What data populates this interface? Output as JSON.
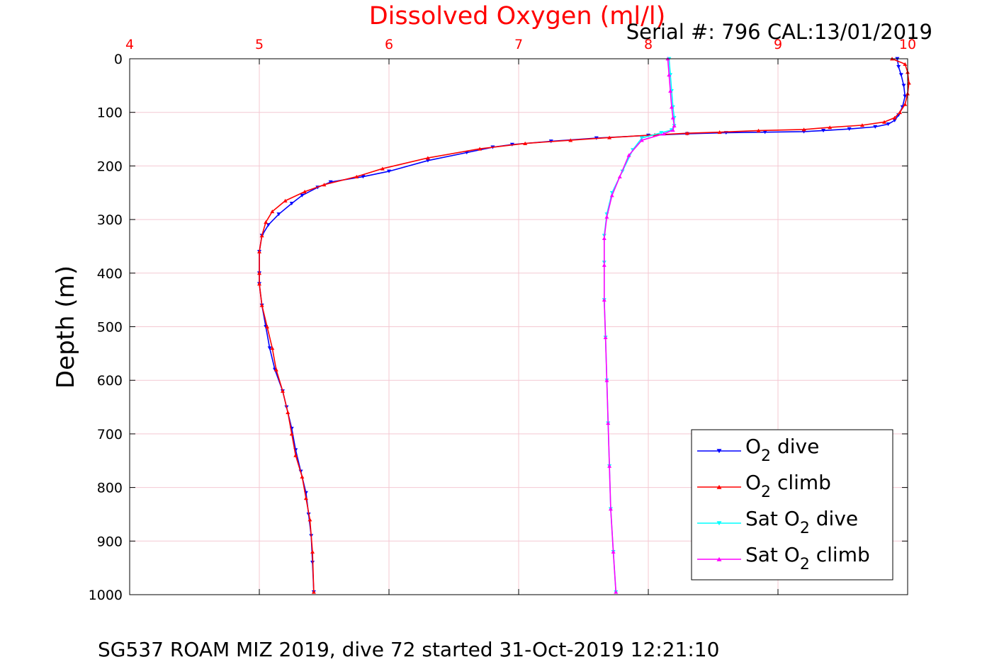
{
  "chart_data": {
    "type": "line",
    "title": "Dissolved Oxygen (ml/l)",
    "subtitle": "Serial #: 796  CAL:13/01/2019",
    "footer": "SG537 ROAM MIZ 2019, dive 72 started 31-Oct-2019 12:21:10",
    "xlabel": "",
    "ylabel": "Depth (m)",
    "xlim": [
      4,
      10
    ],
    "ylim": [
      0,
      1000
    ],
    "y_reversed": true,
    "x_axis_position": "top",
    "xticks": [
      "4",
      "5",
      "6",
      "7",
      "8",
      "9",
      "10"
    ],
    "yticks": [
      "0",
      "100",
      "200",
      "300",
      "400",
      "500",
      "600",
      "700",
      "800",
      "900",
      "1000"
    ],
    "grid": true,
    "legend_position": "bottom-right",
    "colors": {
      "title": "#ff0000",
      "xticks": "#ff0000",
      "grid": "#f4c8d2",
      "axis": "#000000"
    },
    "series": [
      {
        "name": "O2 dive",
        "legend": {
          "pre": "O",
          "sub": "2",
          "post": " dive"
        },
        "color": "#0000ff",
        "marker": "triangle-down",
        "x": [
          9.92,
          9.93,
          9.95,
          9.97,
          9.98,
          9.96,
          9.93,
          9.9,
          9.85,
          9.75,
          9.55,
          9.35,
          9.2,
          8.9,
          8.6,
          8.3,
          8.0,
          7.6,
          7.25,
          6.95,
          6.8,
          6.6,
          6.3,
          6.0,
          5.8,
          5.55,
          5.45,
          5.33,
          5.25,
          5.15,
          5.07,
          5.02,
          5.0,
          5.0,
          5.0,
          5.02,
          5.05,
          5.08,
          5.12,
          5.18,
          5.21,
          5.25,
          5.28,
          5.32,
          5.36,
          5.38,
          5.4,
          5.41,
          5.42
        ],
        "y": [
          0,
          15,
          30,
          50,
          70,
          90,
          105,
          115,
          122,
          127,
          131,
          134,
          136,
          137,
          138,
          140,
          143,
          148,
          154,
          160,
          165,
          175,
          190,
          210,
          220,
          230,
          240,
          255,
          270,
          290,
          310,
          330,
          360,
          400,
          420,
          460,
          500,
          540,
          580,
          620,
          650,
          690,
          730,
          770,
          810,
          850,
          890,
          940,
          995
        ]
      },
      {
        "name": "O2 climb",
        "legend": {
          "pre": "O",
          "sub": "2",
          "post": " climb"
        },
        "color": "#ff0000",
        "marker": "triangle-up",
        "x": [
          9.88,
          9.98,
          10.0,
          10.01,
          10.0,
          9.98,
          9.94,
          9.9,
          9.82,
          9.65,
          9.4,
          9.2,
          8.85,
          8.55,
          8.3,
          8.05,
          7.7,
          7.4,
          7.05,
          6.7,
          6.3,
          5.95,
          5.75,
          5.5,
          5.35,
          5.2,
          5.1,
          5.05,
          5.02,
          5.0,
          5.0,
          5.0,
          5.02,
          5.06,
          5.1,
          5.13,
          5.18,
          5.22,
          5.25,
          5.28,
          5.33,
          5.36,
          5.39,
          5.41,
          5.42
        ],
        "y": [
          0,
          10,
          25,
          45,
          65,
          85,
          100,
          110,
          118,
          124,
          128,
          132,
          134,
          137,
          139,
          142,
          147,
          152,
          158,
          168,
          185,
          205,
          220,
          235,
          248,
          265,
          285,
          305,
          330,
          360,
          400,
          420,
          460,
          500,
          540,
          580,
          620,
          660,
          700,
          740,
          780,
          820,
          860,
          920,
          995
        ]
      },
      {
        "name": "Sat O2 dive",
        "legend": {
          "pre": "Sat O",
          "sub": "2",
          "post": " dive"
        },
        "color": "#00ffff",
        "marker": "triangle-down",
        "x": [
          8.16,
          8.17,
          8.18,
          8.19,
          8.2,
          8.2,
          8.18,
          8.1,
          7.95,
          7.88,
          7.8,
          7.72,
          7.68,
          7.66,
          7.66,
          7.66,
          7.67,
          7.68,
          7.69,
          7.7,
          7.71,
          7.73,
          7.75
        ],
        "y": [
          0,
          30,
          60,
          90,
          110,
          125,
          133,
          138,
          148,
          170,
          210,
          250,
          290,
          330,
          380,
          450,
          520,
          600,
          680,
          760,
          840,
          920,
          995
        ]
      },
      {
        "name": "Sat O2 climb",
        "legend": {
          "pre": "Sat O",
          "sub": "2",
          "post": " climb"
        },
        "color": "#ff00ff",
        "marker": "triangle-up",
        "x": [
          8.15,
          8.16,
          8.17,
          8.18,
          8.19,
          8.2,
          8.19,
          8.12,
          7.95,
          7.85,
          7.78,
          7.72,
          7.68,
          7.66,
          7.66,
          7.66,
          7.67,
          7.68,
          7.69,
          7.7,
          7.71,
          7.73,
          7.75
        ],
        "y": [
          0,
          30,
          60,
          90,
          110,
          125,
          133,
          140,
          152,
          180,
          220,
          255,
          295,
          335,
          385,
          450,
          520,
          600,
          680,
          760,
          840,
          920,
          995
        ]
      }
    ]
  }
}
